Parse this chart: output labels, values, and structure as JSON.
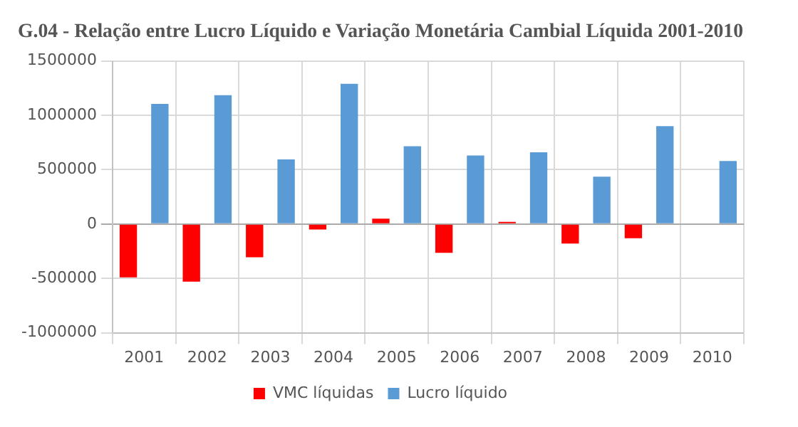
{
  "chart_data": {
    "type": "bar",
    "title": "G.04 - Relação entre Lucro Líquido e Variação Monetária Cambial Líquida 2001-2010",
    "categories": [
      "2001",
      "2002",
      "2003",
      "2004",
      "2005",
      "2006",
      "2007",
      "2008",
      "2009",
      "2010"
    ],
    "series": [
      {
        "name": "VMC líquidas",
        "color": "#ff0000",
        "values": [
          -490000,
          -530000,
          -305000,
          -50000,
          50000,
          -265000,
          20000,
          -180000,
          -130000,
          null
        ]
      },
      {
        "name": "Lucro líquido",
        "color": "#5b9bd5",
        "values": [
          1105000,
          1185000,
          595000,
          1290000,
          715000,
          630000,
          660000,
          435000,
          900000,
          580000
        ]
      }
    ],
    "ylim": [
      -1000000,
      1500000
    ],
    "yticks": [
      -1000000,
      -500000,
      0,
      500000,
      1000000,
      1500000
    ],
    "grid": true,
    "legend": "bottom"
  }
}
